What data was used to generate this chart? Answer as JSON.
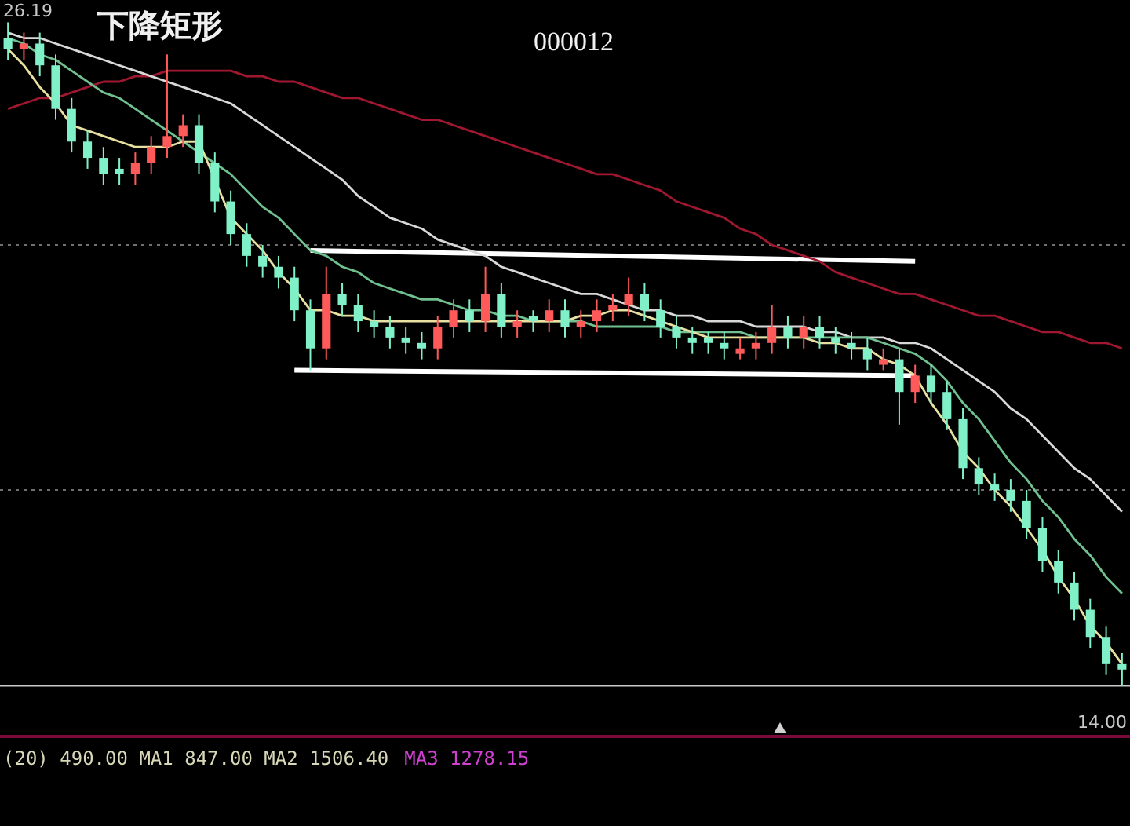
{
  "chart_data": {
    "type": "candlestick",
    "title": "下降矩形",
    "subtitle": "000012",
    "categories": [
      null,
      null,
      null,
      null,
      null,
      null,
      null,
      null,
      null,
      null,
      null,
      null,
      null,
      null,
      null,
      null,
      null,
      null,
      null,
      null,
      null,
      null,
      null,
      null,
      null,
      null,
      null,
      null,
      null,
      null,
      null,
      null,
      null,
      null,
      null,
      null,
      null,
      null,
      null,
      null,
      null,
      null,
      null,
      null,
      null,
      null,
      null,
      null,
      null,
      null,
      null,
      null,
      null,
      null,
      null,
      null,
      null,
      null,
      null,
      null,
      null,
      null,
      null,
      null,
      null,
      null,
      null,
      null,
      null,
      null,
      null
    ],
    "ohlc": [
      [
        25.9,
        26.19,
        25.5,
        25.7
      ],
      [
        25.7,
        26.0,
        25.5,
        25.8
      ],
      [
        25.8,
        26.0,
        25.2,
        25.4
      ],
      [
        25.4,
        25.6,
        24.4,
        24.6
      ],
      [
        24.6,
        24.8,
        23.8,
        24.0
      ],
      [
        24.0,
        24.2,
        23.5,
        23.7
      ],
      [
        23.7,
        23.9,
        23.2,
        23.4
      ],
      [
        23.5,
        23.7,
        23.2,
        23.4
      ],
      [
        23.4,
        23.8,
        23.2,
        23.6
      ],
      [
        23.6,
        24.1,
        23.4,
        23.9
      ],
      [
        23.9,
        25.6,
        23.7,
        24.1
      ],
      [
        24.1,
        24.5,
        23.9,
        24.3
      ],
      [
        24.3,
        24.5,
        23.4,
        23.6
      ],
      [
        23.6,
        23.8,
        22.7,
        22.9
      ],
      [
        22.9,
        23.1,
        22.1,
        22.3
      ],
      [
        22.3,
        22.5,
        21.7,
        21.9
      ],
      [
        21.9,
        22.1,
        21.5,
        21.7
      ],
      [
        21.7,
        21.9,
        21.3,
        21.5
      ],
      [
        21.5,
        21.7,
        20.7,
        20.9
      ],
      [
        20.9,
        21.1,
        19.8,
        20.2
      ],
      [
        20.2,
        21.7,
        20.0,
        21.2
      ],
      [
        21.2,
        21.4,
        20.8,
        21.0
      ],
      [
        21.0,
        21.2,
        20.5,
        20.7
      ],
      [
        20.7,
        20.9,
        20.4,
        20.6
      ],
      [
        20.6,
        20.8,
        20.2,
        20.4
      ],
      [
        20.4,
        20.6,
        20.1,
        20.3
      ],
      [
        20.3,
        20.5,
        20.0,
        20.2
      ],
      [
        20.2,
        20.8,
        20.0,
        20.6
      ],
      [
        20.6,
        21.1,
        20.4,
        20.9
      ],
      [
        20.9,
        21.1,
        20.5,
        20.7
      ],
      [
        20.7,
        21.7,
        20.5,
        21.2
      ],
      [
        21.2,
        21.4,
        20.4,
        20.6
      ],
      [
        20.6,
        20.9,
        20.4,
        20.7
      ],
      [
        20.8,
        20.9,
        20.5,
        20.7
      ],
      [
        20.7,
        21.1,
        20.5,
        20.9
      ],
      [
        20.9,
        21.1,
        20.4,
        20.6
      ],
      [
        20.6,
        20.9,
        20.4,
        20.7
      ],
      [
        20.7,
        21.1,
        20.5,
        20.9
      ],
      [
        20.9,
        21.2,
        20.7,
        21.0
      ],
      [
        21.0,
        21.5,
        20.8,
        21.2
      ],
      [
        21.2,
        21.4,
        20.7,
        20.9
      ],
      [
        20.9,
        21.1,
        20.4,
        20.6
      ],
      [
        20.6,
        20.8,
        20.2,
        20.4
      ],
      [
        20.4,
        20.6,
        20.1,
        20.3
      ],
      [
        20.4,
        20.5,
        20.1,
        20.3
      ],
      [
        20.3,
        20.5,
        20.0,
        20.2
      ],
      [
        20.1,
        20.4,
        20.0,
        20.2
      ],
      [
        20.2,
        20.5,
        20.0,
        20.3
      ],
      [
        20.3,
        21.0,
        20.1,
        20.6
      ],
      [
        20.6,
        20.8,
        20.2,
        20.4
      ],
      [
        20.4,
        20.8,
        20.2,
        20.6
      ],
      [
        20.6,
        20.8,
        20.2,
        20.4
      ],
      [
        20.4,
        20.6,
        20.1,
        20.3
      ],
      [
        20.3,
        20.5,
        20.0,
        20.2
      ],
      [
        20.2,
        20.4,
        19.8,
        20.0
      ],
      [
        19.9,
        20.2,
        19.8,
        20.0
      ],
      [
        20.0,
        20.2,
        18.8,
        19.4
      ],
      [
        19.4,
        19.9,
        19.2,
        19.7
      ],
      [
        19.7,
        19.9,
        19.2,
        19.4
      ],
      [
        19.4,
        19.6,
        18.7,
        18.9
      ],
      [
        18.9,
        19.1,
        17.8,
        18.0
      ],
      [
        18.0,
        18.2,
        17.5,
        17.7
      ],
      [
        17.7,
        17.9,
        17.4,
        17.6
      ],
      [
        17.6,
        17.8,
        17.2,
        17.4
      ],
      [
        17.4,
        17.6,
        16.7,
        16.9
      ],
      [
        16.9,
        17.1,
        16.1,
        16.3
      ],
      [
        16.3,
        16.5,
        15.7,
        15.9
      ],
      [
        15.9,
        16.1,
        15.2,
        15.4
      ],
      [
        15.4,
        15.6,
        14.7,
        14.9
      ],
      [
        14.9,
        15.1,
        14.2,
        14.4
      ],
      [
        14.4,
        14.6,
        14.0,
        14.3
      ]
    ],
    "colors": [
      "#7ff0c8",
      "#ff5a5a",
      "#7ff0c8",
      "#7ff0c8",
      "#7ff0c8",
      "#7ff0c8",
      "#7ff0c8",
      "#7ff0c8",
      "#ff5a5a",
      "#ff5a5a",
      "#ff5a5a",
      "#ff5a5a",
      "#7ff0c8",
      "#7ff0c8",
      "#7ff0c8",
      "#7ff0c8",
      "#7ff0c8",
      "#7ff0c8",
      "#7ff0c8",
      "#7ff0c8",
      "#ff5a5a",
      "#7ff0c8",
      "#7ff0c8",
      "#7ff0c8",
      "#7ff0c8",
      "#7ff0c8",
      "#7ff0c8",
      "#ff5a5a",
      "#ff5a5a",
      "#7ff0c8",
      "#ff5a5a",
      "#7ff0c8",
      "#ff5a5a",
      "#7ff0c8",
      "#ff5a5a",
      "#7ff0c8",
      "#ff5a5a",
      "#ff5a5a",
      "#ff5a5a",
      "#ff5a5a",
      "#7ff0c8",
      "#7ff0c8",
      "#7ff0c8",
      "#7ff0c8",
      "#7ff0c8",
      "#7ff0c8",
      "#ff5a5a",
      "#ff5a5a",
      "#ff5a5a",
      "#7ff0c8",
      "#ff5a5a",
      "#7ff0c8",
      "#7ff0c8",
      "#7ff0c8",
      "#7ff0c8",
      "#ff5a5a",
      "#7ff0c8",
      "#ff5a5a",
      "#7ff0c8",
      "#7ff0c8",
      "#7ff0c8",
      "#7ff0c8",
      "#7ff0c8",
      "#7ff0c8",
      "#7ff0c8",
      "#7ff0c8",
      "#7ff0c8",
      "#7ff0c8",
      "#7ff0c8",
      "#7ff0c8",
      "#7ff0c8"
    ],
    "series": [
      {
        "type": "line",
        "color": "#e8e0a0",
        "values": [
          25.7,
          25.4,
          25.0,
          24.7,
          24.3,
          24.2,
          24.1,
          24.0,
          23.9,
          23.9,
          23.9,
          24.0,
          24.0,
          23.3,
          22.6,
          22.3,
          22.0,
          21.6,
          21.3,
          20.9,
          20.9,
          20.8,
          20.8,
          20.7,
          20.7,
          20.7,
          20.7,
          20.7,
          20.7,
          20.7,
          20.7,
          20.7,
          20.7,
          20.7,
          20.7,
          20.7,
          20.8,
          20.8,
          20.9,
          20.9,
          20.8,
          20.7,
          20.6,
          20.5,
          20.4,
          20.4,
          20.4,
          20.4,
          20.4,
          20.4,
          20.4,
          20.3,
          20.3,
          20.2,
          20.2,
          20.0,
          19.9,
          19.7,
          19.2,
          18.8,
          18.3,
          18.0,
          17.6,
          17.3,
          16.9,
          16.5,
          16.0,
          15.6,
          15.1,
          14.8,
          14.4
        ]
      },
      {
        "type": "line",
        "color": "#70c090",
        "values": [
          25.9,
          25.8,
          25.6,
          25.5,
          25.3,
          25.1,
          24.9,
          24.8,
          24.6,
          24.4,
          24.2,
          24.0,
          23.8,
          23.6,
          23.4,
          23.1,
          22.8,
          22.6,
          22.3,
          22.0,
          21.9,
          21.7,
          21.6,
          21.4,
          21.3,
          21.2,
          21.1,
          21.1,
          21.0,
          20.9,
          20.9,
          20.8,
          20.8,
          20.7,
          20.7,
          20.7,
          20.7,
          20.6,
          20.6,
          20.6,
          20.6,
          20.6,
          20.5,
          20.5,
          20.5,
          20.5,
          20.5,
          20.4,
          20.4,
          20.4,
          20.4,
          20.4,
          20.4,
          20.4,
          20.4,
          20.3,
          20.2,
          20.1,
          19.9,
          19.6,
          19.2,
          18.9,
          18.5,
          18.1,
          17.8,
          17.4,
          17.1,
          16.7,
          16.4,
          16.0,
          15.7
        ]
      },
      {
        "type": "line",
        "color": "#d8d8d8",
        "values": [
          26.0,
          25.9,
          25.9,
          25.8,
          25.7,
          25.6,
          25.5,
          25.4,
          25.3,
          25.2,
          25.1,
          25.0,
          24.9,
          24.8,
          24.7,
          24.5,
          24.3,
          24.1,
          23.9,
          23.7,
          23.5,
          23.3,
          23.0,
          22.8,
          22.6,
          22.5,
          22.4,
          22.2,
          22.1,
          22.0,
          21.9,
          21.7,
          21.6,
          21.5,
          21.4,
          21.3,
          21.2,
          21.2,
          21.1,
          21.0,
          20.9,
          20.9,
          20.8,
          20.8,
          20.7,
          20.7,
          20.7,
          20.6,
          20.6,
          20.6,
          20.6,
          20.5,
          20.5,
          20.4,
          20.4,
          20.4,
          20.3,
          20.3,
          20.2,
          20.0,
          19.8,
          19.6,
          19.4,
          19.1,
          18.9,
          18.6,
          18.3,
          18.0,
          17.8,
          17.5,
          17.2
        ]
      },
      {
        "type": "line",
        "color": "#a01830",
        "values": [
          24.6,
          24.7,
          24.8,
          24.8,
          24.9,
          25.0,
          25.1,
          25.1,
          25.2,
          25.2,
          25.3,
          25.3,
          25.3,
          25.3,
          25.3,
          25.2,
          25.2,
          25.1,
          25.1,
          25.0,
          24.9,
          24.8,
          24.8,
          24.7,
          24.6,
          24.5,
          24.4,
          24.4,
          24.3,
          24.2,
          24.1,
          24.0,
          23.9,
          23.8,
          23.7,
          23.6,
          23.5,
          23.4,
          23.4,
          23.3,
          23.2,
          23.1,
          22.9,
          22.8,
          22.7,
          22.6,
          22.4,
          22.3,
          22.1,
          22.0,
          21.9,
          21.8,
          21.6,
          21.5,
          21.4,
          21.3,
          21.2,
          21.2,
          21.1,
          21.0,
          20.9,
          20.8,
          20.8,
          20.7,
          20.6,
          20.5,
          20.5,
          20.4,
          20.3,
          20.3,
          20.2
        ]
      },
      {
        "type": "line",
        "color": "#ffffff",
        "values": [
          null,
          null,
          null,
          null,
          null,
          null,
          null,
          null,
          null,
          null,
          null,
          null,
          null,
          null,
          null,
          null,
          null,
          null,
          null,
          22.0,
          null,
          null,
          null,
          null,
          null,
          null,
          null,
          null,
          null,
          null,
          null,
          null,
          null,
          null,
          null,
          null,
          null,
          null,
          null,
          null,
          null,
          null,
          null,
          null,
          null,
          null,
          null,
          null,
          null,
          null,
          null,
          null,
          null,
          null,
          null,
          null,
          null,
          21.8,
          null,
          null,
          null,
          null,
          null,
          null,
          null,
          null,
          null,
          null,
          null,
          null,
          null
        ]
      },
      {
        "type": "line",
        "color": "#ffffff",
        "values": [
          null,
          null,
          null,
          null,
          null,
          null,
          null,
          null,
          null,
          null,
          null,
          null,
          null,
          null,
          null,
          null,
          null,
          null,
          19.8,
          null,
          null,
          null,
          null,
          null,
          null,
          null,
          null,
          null,
          null,
          null,
          null,
          null,
          null,
          null,
          null,
          null,
          null,
          null,
          null,
          null,
          null,
          null,
          null,
          null,
          null,
          null,
          null,
          null,
          null,
          null,
          null,
          null,
          null,
          null,
          null,
          null,
          null,
          19.7,
          null,
          null,
          null,
          null,
          null,
          null,
          null,
          null,
          null,
          null,
          null,
          null,
          null
        ]
      }
    ],
    "ylim": [
      13.1,
      26.6
    ],
    "tick_labels": false,
    "legend": false,
    "marker": "none",
    "line_style": "solid",
    "ref_lines": [
      {
        "axis": "y",
        "value": 22.1,
        "line_style": "dotted",
        "color": "#707070"
      },
      {
        "axis": "y",
        "value": 17.6,
        "line_style": "dotted",
        "color": "#707070"
      },
      {
        "axis": "y",
        "value": 14.0,
        "line_style": "solid",
        "color": "#c8c8c8"
      }
    ],
    "annotations": [
      "26.19",
      "14.00",
      "(20)  490.00  MA1 847.00  MA2 1506.40",
      "MA3 1278.15"
    ]
  }
}
